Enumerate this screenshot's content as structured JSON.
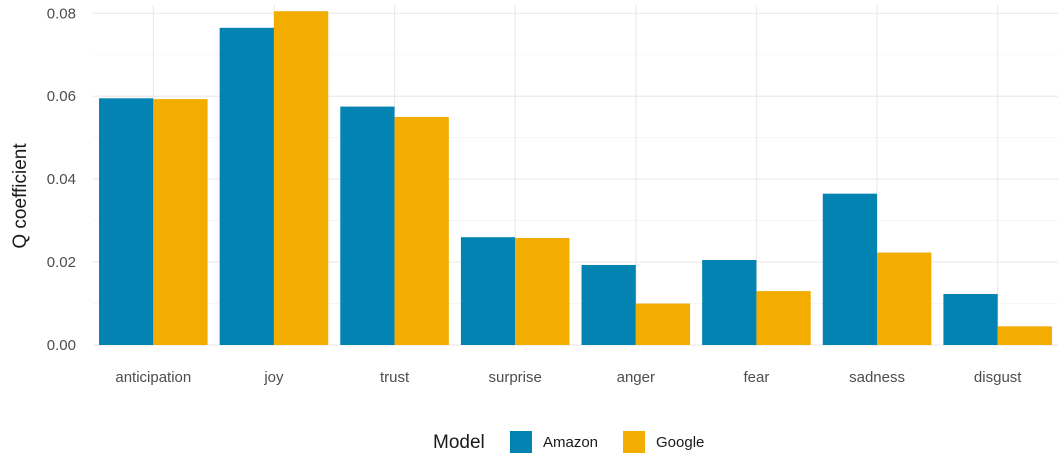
{
  "chart_data": {
    "type": "bar",
    "ylabel": "Q coefficient",
    "xlabel": "",
    "ylim": [
      0,
      0.082
    ],
    "yticks": [
      "0.00",
      "0.02",
      "0.04",
      "0.06",
      "0.08"
    ],
    "categories": [
      "anticipation",
      "joy",
      "trust",
      "surprise",
      "anger",
      "fear",
      "sadness",
      "disgust"
    ],
    "series": [
      {
        "name": "Amazon",
        "color": "#0283B2",
        "values": [
          0.0595,
          0.0765,
          0.0575,
          0.026,
          0.0193,
          0.0205,
          0.0365,
          0.0123
        ]
      },
      {
        "name": "Google",
        "color": "#F2AD00",
        "values": [
          0.0593,
          0.0805,
          0.055,
          0.0258,
          0.01,
          0.013,
          0.0223,
          0.0045
        ]
      }
    ],
    "grid": true,
    "legend": {
      "title": "Model",
      "position": "bottom"
    }
  }
}
